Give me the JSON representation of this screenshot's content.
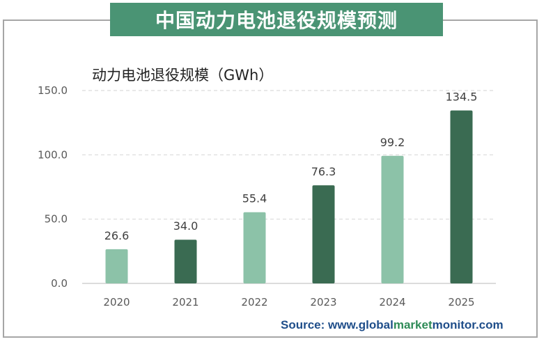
{
  "title": "中国动力电池退役规模预测",
  "source": {
    "prefix": "Source: www.",
    "part1": "global",
    "part2": "market",
    "part3": "monitor",
    "suffix": ".com"
  },
  "colors": {
    "light_bar": "#8cc2a8",
    "dark_bar": "#3a6b52",
    "banner": "#4a9474"
  },
  "chart_data": {
    "type": "bar",
    "title": "中国动力电池退役规模预测",
    "ylabel": "动力电池退役规模（GWh）",
    "xlabel": "",
    "categories": [
      "2020",
      "2021",
      "2022",
      "2023",
      "2024",
      "2025"
    ],
    "values": [
      26.6,
      34.0,
      55.4,
      76.3,
      99.2,
      134.5
    ],
    "value_labels": [
      "26.6",
      "34.0",
      "55.4",
      "76.3",
      "99.2",
      "134.5"
    ],
    "bar_colors": [
      "#8cc2a8",
      "#3a6b52",
      "#8cc2a8",
      "#3a6b52",
      "#8cc2a8",
      "#3a6b52"
    ],
    "ylim": [
      0,
      150
    ],
    "yticks": [
      0,
      50,
      100,
      150
    ],
    "ytick_labels": [
      "0.0",
      "50.0",
      "100.0",
      "150.0"
    ],
    "grid": true,
    "legend": "none"
  }
}
